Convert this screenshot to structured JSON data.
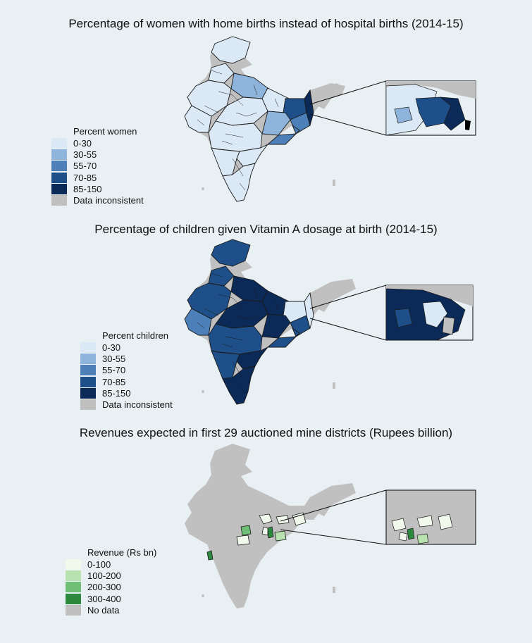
{
  "palette": {
    "background": "#e8f0f3",
    "no_data": "#c0c0c0",
    "border": "#1a1a1a",
    "inset_border": "#000000"
  },
  "panels": [
    {
      "title": "Percentage of women with home births instead of hospital births (2014-15)",
      "legend": {
        "title": "Percent women",
        "items": [
          {
            "label": "0-30",
            "color": "#dbe9f7"
          },
          {
            "label": "30-55",
            "color": "#8fb4dc"
          },
          {
            "label": "55-70",
            "color": "#4d7fb8"
          },
          {
            "label": "70-85",
            "color": "#1f4f88"
          },
          {
            "label": "85-150",
            "color": "#0b2a57"
          },
          {
            "label": "Data inconsistent",
            "color": "#c0c0c0"
          }
        ]
      }
    },
    {
      "title": "Percentage of children given Vitamin A dosage at birth (2014-15)",
      "legend": {
        "title": "Percent children",
        "items": [
          {
            "label": "0-30",
            "color": "#dbe9f7"
          },
          {
            "label": "30-55",
            "color": "#8fb4dc"
          },
          {
            "label": "55-70",
            "color": "#4d7fb8"
          },
          {
            "label": "70-85",
            "color": "#1f4f88"
          },
          {
            "label": "85-150",
            "color": "#0b2a57"
          },
          {
            "label": "Data inconsistent",
            "color": "#c0c0c0"
          }
        ]
      }
    },
    {
      "title": "Revenues expected in first 29 auctioned mine districts (Rupees billion)",
      "legend": {
        "title": "Revenue (Rs bn)",
        "items": [
          {
            "label": "0-100",
            "color": "#f0f9ec"
          },
          {
            "label": "100-200",
            "color": "#b8e2b0"
          },
          {
            "label": "200-300",
            "color": "#6fbf76"
          },
          {
            "label": "300-400",
            "color": "#2b8a3e"
          },
          {
            "label": "No data",
            "color": "#c0c0c0"
          }
        ]
      }
    }
  ]
}
